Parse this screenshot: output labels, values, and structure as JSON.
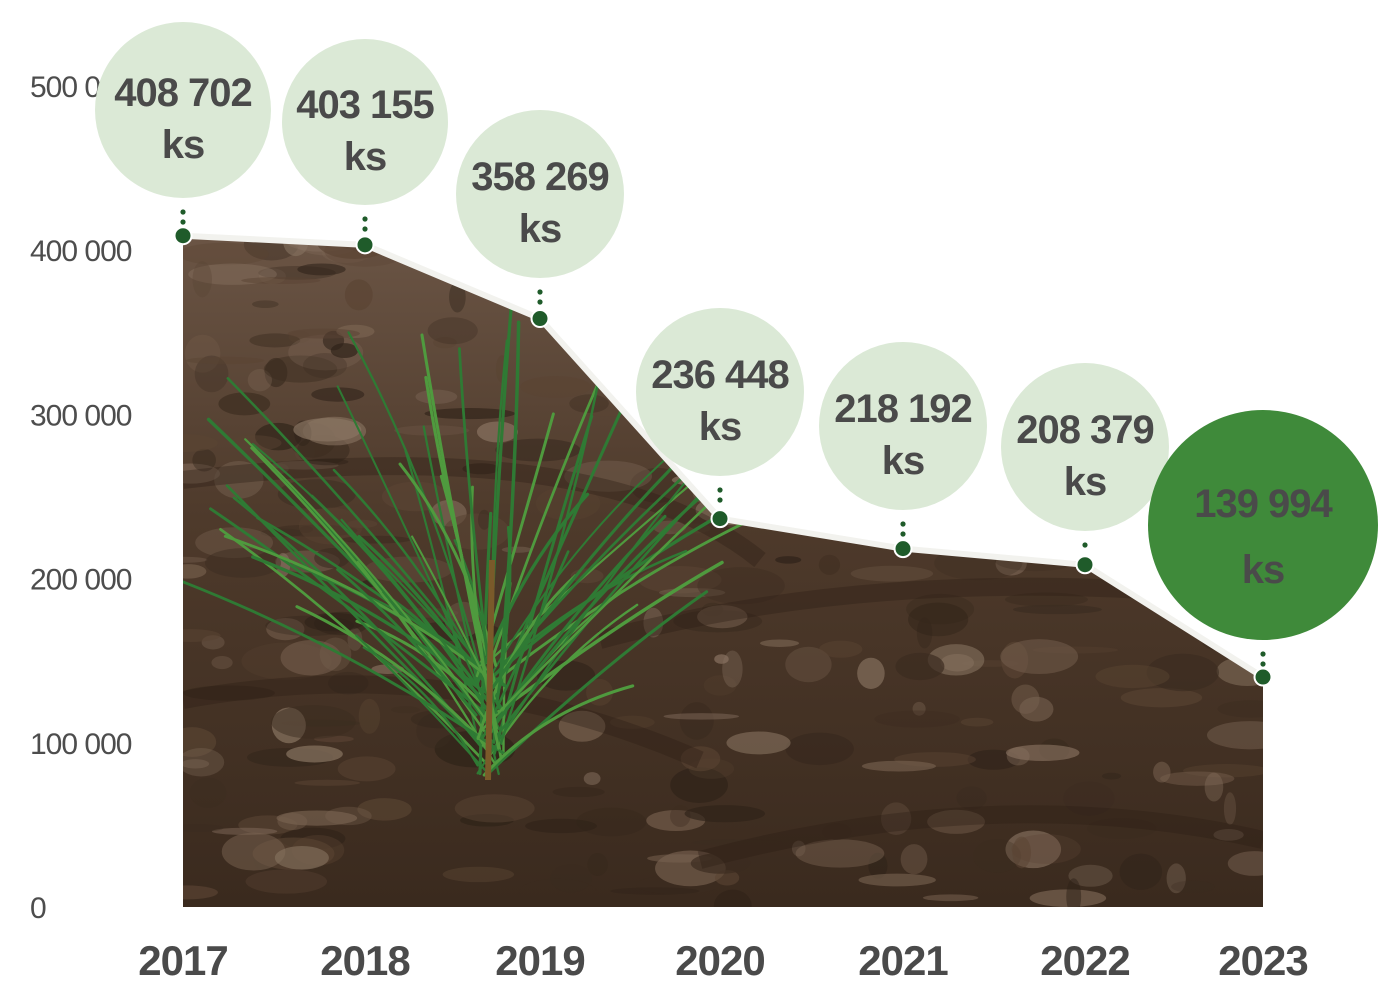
{
  "colors": {
    "bubble_fill": "#dbe9d6",
    "bubble_text": "#4a4a4a",
    "highlight_fill": "#3f8a3a",
    "highlight_text": "#ffffff",
    "marker": "#1f5b2a",
    "soil_dark": "#3b2c20",
    "soil_mid": "#5a4433",
    "soil_light": "#7a6452",
    "plant": "#2f7a34",
    "axis_text": "#4d4d4d",
    "highlight_year": "#3f8a3a"
  },
  "chart_data": {
    "type": "area",
    "x": [
      "2017",
      "2018",
      "2019",
      "2020",
      "2021",
      "2022",
      "2023"
    ],
    "values": [
      408702,
      403155,
      358269,
      236448,
      218192,
      208379,
      139994
    ],
    "labels": [
      [
        "408 702",
        "ks"
      ],
      [
        "403 155",
        "ks"
      ],
      [
        "358 269",
        "ks"
      ],
      [
        "236 448",
        "ks"
      ],
      [
        "218 192",
        "ks"
      ],
      [
        "208 379",
        "ks"
      ],
      [
        "139 994",
        "ks"
      ]
    ],
    "ylim": [
      0,
      500000
    ],
    "yticks": [
      "0",
      "100 000",
      "200 000",
      "300 000",
      "400 000",
      "500 000"
    ],
    "highlight_index": 6,
    "fill": "photo of soil with a young pine seedling",
    "grid": false,
    "legend": "none"
  }
}
